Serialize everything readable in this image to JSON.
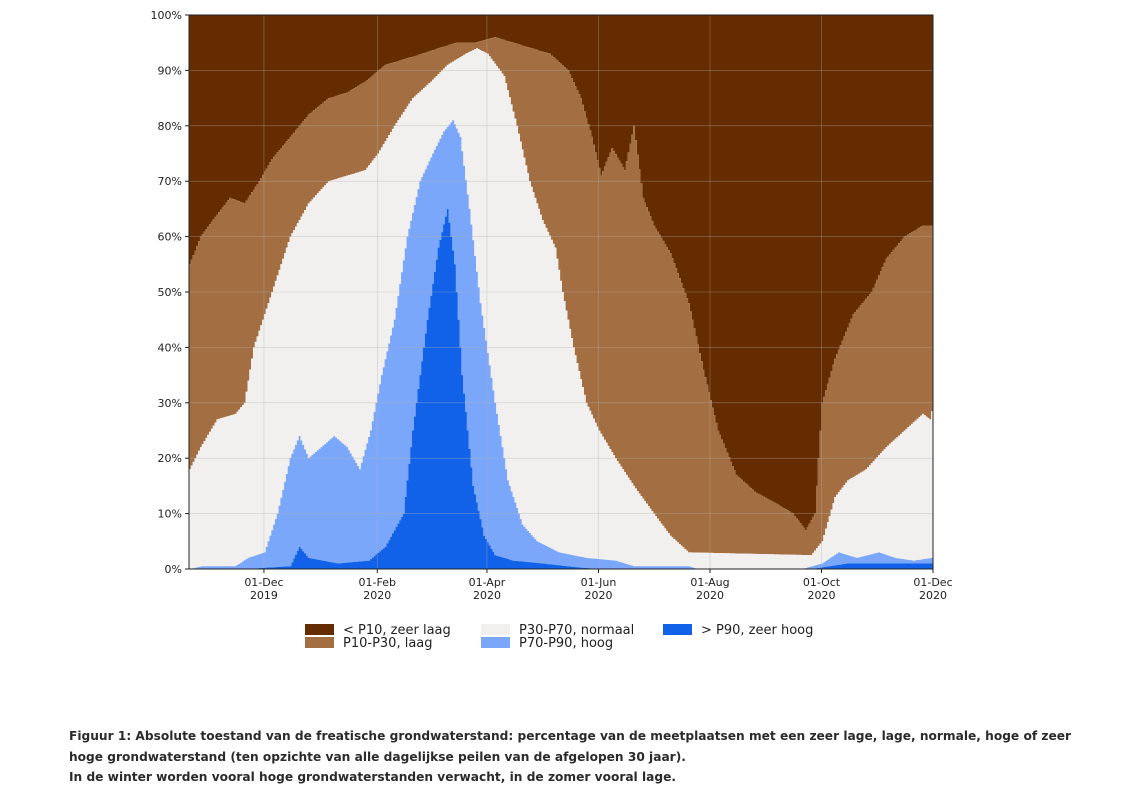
{
  "chart_data": {
    "type": "area",
    "stacked": true,
    "ylim": [
      0,
      100
    ],
    "yticks": [
      "0%",
      "10%",
      "20%",
      "30%",
      "40%",
      "50%",
      "60%",
      "70%",
      "80%",
      "90%",
      "100%"
    ],
    "xlim": [
      "2019-10-21",
      "2020-12-01"
    ],
    "xticks": [
      {
        "date": "2019-12-01",
        "line1": "01-Dec",
        "line2": "2019"
      },
      {
        "date": "2020-02-01",
        "line1": "01-Feb",
        "line2": "2020"
      },
      {
        "date": "2020-04-01",
        "line1": "01-Apr",
        "line2": "2020"
      },
      {
        "date": "2020-06-01",
        "line1": "01-Jun",
        "line2": "2020"
      },
      {
        "date": "2020-08-01",
        "line1": "01-Aug",
        "line2": "2020"
      },
      {
        "date": "2020-10-01",
        "line1": "01-Oct",
        "line2": "2020"
      },
      {
        "date": "2020-12-01",
        "line1": "01-Dec",
        "line2": "2020"
      }
    ],
    "grid": true,
    "legend_position": "bottom",
    "series": [
      {
        "name": "< P10, zeer laag",
        "color": "#642c00"
      },
      {
        "name": "P10-P30, laag",
        "color": "#a36f42"
      },
      {
        "name": "P30-P70, normaal",
        "color": "#f2f0ee"
      },
      {
        "name": "P70-P90, hoog",
        "color": "#7ba7fa"
      },
      {
        "name": "> P90, zeer hoog",
        "color": "#1162e8"
      }
    ],
    "boundaries_note": "cumulative top edges (%) of each band, bottom band first",
    "cumulative": {
      "top_p90": [
        [
          "2019-10-21",
          0
        ],
        [
          "2019-11-20",
          0
        ],
        [
          "2019-12-15",
          0.5
        ],
        [
          "2019-12-20",
          4
        ],
        [
          "2019-12-25",
          2
        ],
        [
          "2020-01-10",
          1
        ],
        [
          "2020-01-27",
          1.5
        ],
        [
          "2020-02-05",
          4
        ],
        [
          "2020-02-15",
          10
        ],
        [
          "2020-02-20",
          25
        ],
        [
          "2020-02-28",
          45
        ],
        [
          "2020-03-05",
          58
        ],
        [
          "2020-03-10",
          65
        ],
        [
          "2020-03-14",
          55
        ],
        [
          "2020-03-18",
          35
        ],
        [
          "2020-03-24",
          15
        ],
        [
          "2020-03-30",
          6
        ],
        [
          "2020-04-05",
          2.5
        ],
        [
          "2020-04-15",
          1.5
        ],
        [
          "2020-05-01",
          1
        ],
        [
          "2020-05-20",
          0.3
        ],
        [
          "2020-06-01",
          0
        ],
        [
          "2020-09-25",
          0
        ],
        [
          "2020-10-01",
          0.3
        ],
        [
          "2020-10-15",
          1
        ],
        [
          "2020-11-01",
          1
        ],
        [
          "2020-11-20",
          1
        ],
        [
          "2020-12-01",
          1
        ]
      ],
      "top_p70": [
        [
          "2019-10-21",
          0
        ],
        [
          "2019-10-28",
          0.5
        ],
        [
          "2019-11-15",
          0.5
        ],
        [
          "2019-11-22",
          2
        ],
        [
          "2019-12-01",
          3
        ],
        [
          "2019-12-08",
          10
        ],
        [
          "2019-12-15",
          20
        ],
        [
          "2019-12-20",
          24
        ],
        [
          "2019-12-25",
          20
        ],
        [
          "2020-01-01",
          22
        ],
        [
          "2020-01-08",
          24
        ],
        [
          "2020-01-15",
          22
        ],
        [
          "2020-01-22",
          18
        ],
        [
          "2020-01-28",
          25
        ],
        [
          "2020-02-03",
          35
        ],
        [
          "2020-02-10",
          45
        ],
        [
          "2020-02-17",
          60
        ],
        [
          "2020-02-24",
          70
        ],
        [
          "2020-03-02",
          75
        ],
        [
          "2020-03-08",
          79
        ],
        [
          "2020-03-13",
          81
        ],
        [
          "2020-03-17",
          78
        ],
        [
          "2020-03-22",
          65
        ],
        [
          "2020-03-28",
          48
        ],
        [
          "2020-04-05",
          30
        ],
        [
          "2020-04-12",
          16
        ],
        [
          "2020-04-20",
          8
        ],
        [
          "2020-04-28",
          5
        ],
        [
          "2020-05-10",
          3
        ],
        [
          "2020-05-25",
          2
        ],
        [
          "2020-06-10",
          1.5
        ],
        [
          "2020-06-20",
          0.5
        ],
        [
          "2020-07-20",
          0.5
        ],
        [
          "2020-07-25",
          0
        ],
        [
          "2020-09-20",
          0
        ],
        [
          "2020-10-01",
          1
        ],
        [
          "2020-10-10",
          3
        ],
        [
          "2020-10-20",
          2
        ],
        [
          "2020-11-01",
          3
        ],
        [
          "2020-11-10",
          2
        ],
        [
          "2020-11-20",
          1.5
        ],
        [
          "2020-11-30",
          2
        ],
        [
          "2020-12-01",
          3
        ]
      ],
      "top_p30": [
        [
          "2019-10-21",
          18
        ],
        [
          "2019-10-27",
          22
        ],
        [
          "2019-11-05",
          27
        ],
        [
          "2019-11-15",
          28
        ],
        [
          "2019-11-20",
          30
        ],
        [
          "2019-11-25",
          40
        ],
        [
          "2019-12-05",
          50
        ],
        [
          "2019-12-15",
          60
        ],
        [
          "2019-12-25",
          66
        ],
        [
          "2020-01-05",
          70
        ],
        [
          "2020-01-15",
          71
        ],
        [
          "2020-01-25",
          72
        ],
        [
          "2020-02-01",
          75
        ],
        [
          "2020-02-10",
          80
        ],
        [
          "2020-02-20",
          85
        ],
        [
          "2020-03-01",
          88
        ],
        [
          "2020-03-10",
          91
        ],
        [
          "2020-03-20",
          93
        ],
        [
          "2020-03-26",
          94
        ],
        [
          "2020-04-01",
          93
        ],
        [
          "2020-04-10",
          89
        ],
        [
          "2020-04-17",
          80
        ],
        [
          "2020-04-24",
          70
        ],
        [
          "2020-05-01",
          63
        ],
        [
          "2020-05-08",
          58
        ],
        [
          "2020-05-12",
          50
        ],
        [
          "2020-05-18",
          40
        ],
        [
          "2020-05-25",
          30
        ],
        [
          "2020-06-01",
          25
        ],
        [
          "2020-06-10",
          20
        ],
        [
          "2020-06-20",
          15
        ],
        [
          "2020-07-01",
          10
        ],
        [
          "2020-07-10",
          6
        ],
        [
          "2020-07-20",
          3
        ],
        [
          "2020-09-25",
          2.5
        ],
        [
          "2020-10-01",
          5
        ],
        [
          "2020-10-08",
          13
        ],
        [
          "2020-10-15",
          16
        ],
        [
          "2020-10-25",
          18
        ],
        [
          "2020-11-05",
          22
        ],
        [
          "2020-11-15",
          25
        ],
        [
          "2020-11-25",
          28
        ],
        [
          "2020-11-29",
          27
        ],
        [
          "2020-12-01",
          30
        ]
      ],
      "top_p10": [
        [
          "2019-10-21",
          55
        ],
        [
          "2019-10-27",
          60
        ],
        [
          "2019-11-05",
          64
        ],
        [
          "2019-11-12",
          67
        ],
        [
          "2019-11-20",
          66
        ],
        [
          "2019-11-28",
          70
        ],
        [
          "2019-12-05",
          74
        ],
        [
          "2019-12-15",
          78
        ],
        [
          "2019-12-25",
          82
        ],
        [
          "2020-01-05",
          85
        ],
        [
          "2020-01-15",
          86
        ],
        [
          "2020-01-25",
          88
        ],
        [
          "2020-02-05",
          91
        ],
        [
          "2020-02-15",
          92
        ],
        [
          "2020-02-25",
          93
        ],
        [
          "2020-03-05",
          94
        ],
        [
          "2020-03-15",
          95
        ],
        [
          "2020-03-25",
          95
        ],
        [
          "2020-04-05",
          96
        ],
        [
          "2020-04-15",
          95
        ],
        [
          "2020-04-25",
          94
        ],
        [
          "2020-05-05",
          93
        ],
        [
          "2020-05-15",
          90
        ],
        [
          "2020-05-22",
          85
        ],
        [
          "2020-05-28",
          78
        ],
        [
          "2020-06-02",
          71
        ],
        [
          "2020-06-08",
          76
        ],
        [
          "2020-06-15",
          72
        ],
        [
          "2020-06-20",
          80
        ],
        [
          "2020-06-25",
          67
        ],
        [
          "2020-07-01",
          62
        ],
        [
          "2020-07-10",
          57
        ],
        [
          "2020-07-20",
          48
        ],
        [
          "2020-07-28",
          36
        ],
        [
          "2020-08-05",
          25
        ],
        [
          "2020-08-15",
          17
        ],
        [
          "2020-08-25",
          14
        ],
        [
          "2020-09-05",
          12
        ],
        [
          "2020-09-15",
          10
        ],
        [
          "2020-09-22",
          7
        ],
        [
          "2020-09-27",
          10
        ],
        [
          "2020-10-01",
          30
        ],
        [
          "2020-10-08",
          38
        ],
        [
          "2020-10-18",
          46
        ],
        [
          "2020-10-28",
          50
        ],
        [
          "2020-11-05",
          56
        ],
        [
          "2020-11-15",
          60
        ],
        [
          "2020-11-25",
          62
        ],
        [
          "2020-11-30",
          62
        ],
        [
          "2020-12-01",
          64
        ]
      ]
    }
  },
  "caption": {
    "line1": "Figuur 1: Absolute toestand van de freatische grondwaterstand: percentage van de meetplaatsen met een zeer lage, lage, normale, hoge of zeer",
    "line2": "hoge grondwaterstand (ten opzichte van alle dagelijkse peilen van de afgelopen 30 jaar).",
    "line3": "In de winter worden vooral hoge grondwaterstanden verwacht, in de zomer vooral lage."
  }
}
